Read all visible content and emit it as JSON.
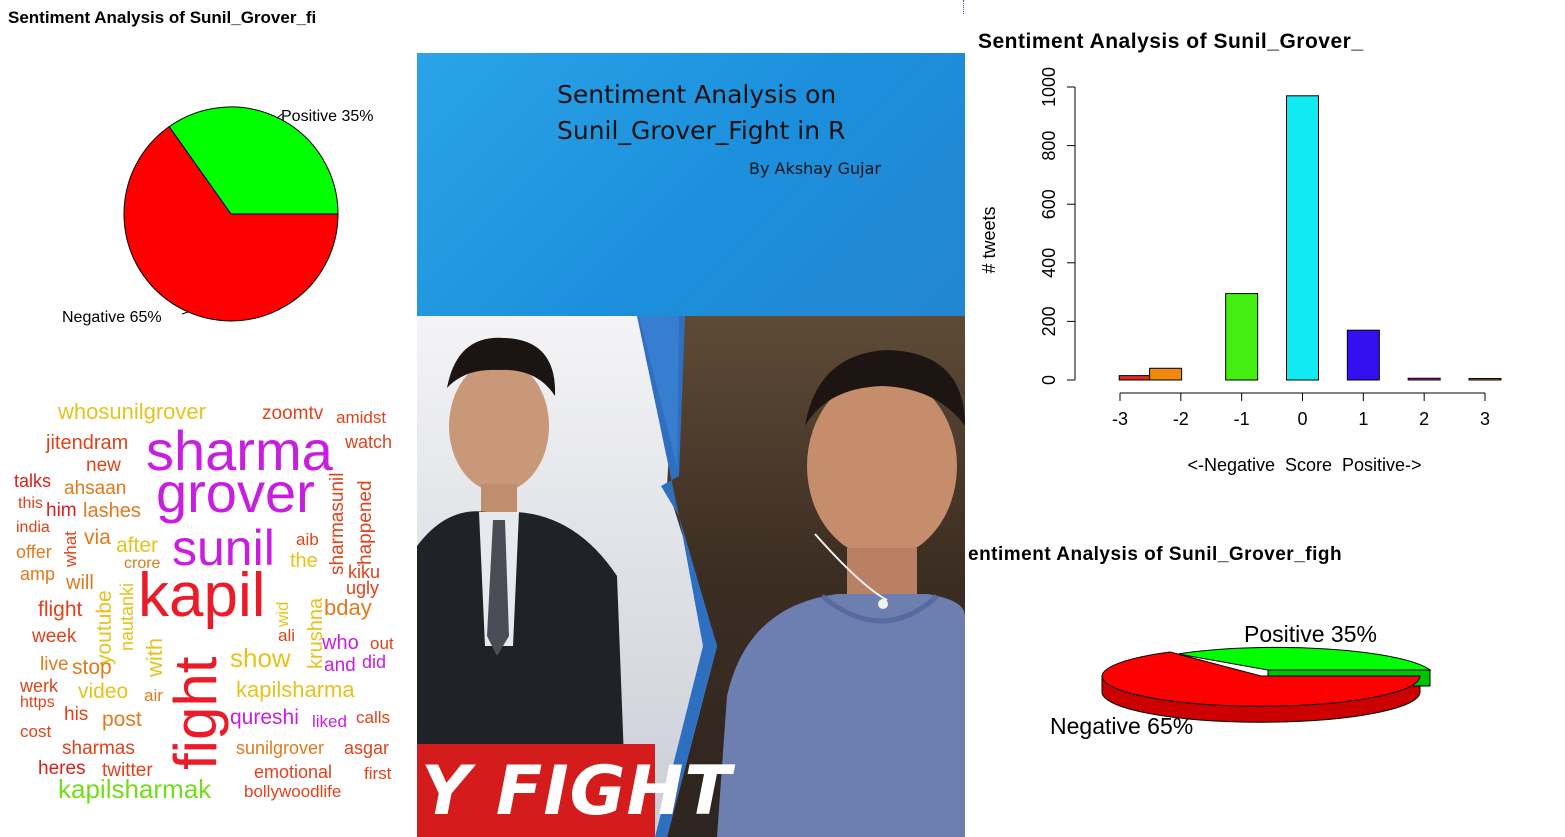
{
  "pie_top_left": {
    "title": "Sentiment Analysis of Sunil_Grover_fi",
    "positive_label": "Positive 35%",
    "negative_label": "Negative 65%",
    "positive_color": "#00ff00",
    "negative_color": "#ff0000"
  },
  "banner": {
    "title_line1": "Sentiment Analysis on",
    "title_line2": "Sunil_Grover_Fight in R",
    "author": "By Akshay Gujar"
  },
  "photo": {
    "caption": "Y FIGHT",
    "description_icons": [
      "person-left-photo",
      "person-right-photo"
    ]
  },
  "wordcloud": {
    "words": [
      {
        "text": "whosunilgrover",
        "color": "#e8c21c"
      },
      {
        "text": "zoomtv",
        "color": "#e0421c"
      },
      {
        "text": "amidst",
        "color": "#e0421c"
      },
      {
        "text": "jitendram",
        "color": "#e0421c"
      },
      {
        "text": "sharma",
        "color": "#c81ee0"
      },
      {
        "text": "watch",
        "color": "#e0421c"
      },
      {
        "text": "new",
        "color": "#e0421c"
      },
      {
        "text": "talks",
        "color": "#d8201c"
      },
      {
        "text": "ahsaan",
        "color": "#e07a1c"
      },
      {
        "text": "grover",
        "color": "#c81ee0"
      },
      {
        "text": "this",
        "color": "#e0421c"
      },
      {
        "text": "him",
        "color": "#d8201c"
      },
      {
        "text": "lashes",
        "color": "#e07a1c"
      },
      {
        "text": "happened",
        "color": "#e0421c"
      },
      {
        "text": "sharmasunil",
        "color": "#e0421c"
      },
      {
        "text": "india",
        "color": "#e0421c"
      },
      {
        "text": "what",
        "color": "#e0421c"
      },
      {
        "text": "via",
        "color": "#e07a1c"
      },
      {
        "text": "after",
        "color": "#e8c21c"
      },
      {
        "text": "sunil",
        "color": "#c81ee0"
      },
      {
        "text": "aib",
        "color": "#e0421c"
      },
      {
        "text": "offer",
        "color": "#e07a1c"
      },
      {
        "text": "crore",
        "color": "#e07a1c"
      },
      {
        "text": "the",
        "color": "#e8c21c"
      },
      {
        "text": "amp",
        "color": "#e07a1c"
      },
      {
        "text": "will",
        "color": "#e07a1c"
      },
      {
        "text": "kiku",
        "color": "#e0421c"
      },
      {
        "text": "ugly",
        "color": "#e0421c"
      },
      {
        "text": "kapil",
        "color": "#ea1c2a"
      },
      {
        "text": "bday",
        "color": "#e07a1c"
      },
      {
        "text": "flight",
        "color": "#e0421c"
      },
      {
        "text": "youtube",
        "color": "#e8c21c"
      },
      {
        "text": "nautanki",
        "color": "#e8c21c"
      },
      {
        "text": "krushna",
        "color": "#e8c21c"
      },
      {
        "text": "wid",
        "color": "#e8c21c"
      },
      {
        "text": "week",
        "color": "#e0421c"
      },
      {
        "text": "ali",
        "color": "#e0421c"
      },
      {
        "text": "who",
        "color": "#c81ee0"
      },
      {
        "text": "out",
        "color": "#e0421c"
      },
      {
        "text": "live",
        "color": "#e07a1c"
      },
      {
        "text": "stop",
        "color": "#e07a1c"
      },
      {
        "text": "with",
        "color": "#e8c21c"
      },
      {
        "text": "show",
        "color": "#e8c21c"
      },
      {
        "text": "fight",
        "color": "#ea1c2a"
      },
      {
        "text": "and",
        "color": "#c81ee0"
      },
      {
        "text": "did",
        "color": "#c81ee0"
      },
      {
        "text": "werk",
        "color": "#e0421c"
      },
      {
        "text": "video",
        "color": "#e8c21c"
      },
      {
        "text": "air",
        "color": "#e07a1c"
      },
      {
        "text": "kapilsharma",
        "color": "#e8c21c"
      },
      {
        "text": "https",
        "color": "#e0421c"
      },
      {
        "text": "his",
        "color": "#e0421c"
      },
      {
        "text": "post",
        "color": "#e07a1c"
      },
      {
        "text": "qureshi",
        "color": "#c81ee0"
      },
      {
        "text": "liked",
        "color": "#c81ee0"
      },
      {
        "text": "calls",
        "color": "#e0421c"
      },
      {
        "text": "cost",
        "color": "#e0421c"
      },
      {
        "text": "sharmas",
        "color": "#e0421c"
      },
      {
        "text": "sunilgrover",
        "color": "#e07a1c"
      },
      {
        "text": "asgar",
        "color": "#e0421c"
      },
      {
        "text": "heres",
        "color": "#d8201c"
      },
      {
        "text": "twitter",
        "color": "#e0421c"
      },
      {
        "text": "emotional",
        "color": "#e0421c"
      },
      {
        "text": "first",
        "color": "#e0421c"
      },
      {
        "text": "kapilsharmak",
        "color": "#74dc1c"
      },
      {
        "text": "bollywoodlife",
        "color": "#e0421c"
      }
    ]
  },
  "chart_data": [
    {
      "type": "pie",
      "title": "Sentiment Analysis of Sunil_Grover_fi",
      "slices": [
        {
          "label": "Positive 35%",
          "value": 35,
          "color": "#00ff00"
        },
        {
          "label": "Negative 65%",
          "value": 65,
          "color": "#ff0000"
        }
      ]
    },
    {
      "type": "bar",
      "title": "Sentiment Analysis of Sunil_Grover_",
      "xlabel": "<-Negative  Score  Positive->",
      "ylabel": "# tweets",
      "x_ticks": [
        "-3",
        "-2",
        "-1",
        "0",
        "1",
        "2",
        "3"
      ],
      "y_ticks": [
        "0",
        "200",
        "400",
        "600",
        "800",
        "1000"
      ],
      "ylim": [
        0,
        1000
      ],
      "xlim": [
        -3,
        3
      ],
      "bars": [
        {
          "x": -2.75,
          "value": 15,
          "color": "#e02a1c"
        },
        {
          "x": -2.25,
          "value": 40,
          "color": "#f08a0c"
        },
        {
          "x": -1.0,
          "value": 295,
          "color": "#44ee10"
        },
        {
          "x": 0.0,
          "value": 970,
          "color": "#10eaf0"
        },
        {
          "x": 1.0,
          "value": 170,
          "color": "#3410f0"
        },
        {
          "x": 2.0,
          "value": 6,
          "color": "#d81ad8"
        },
        {
          "x": 3.0,
          "value": 5,
          "color": "#f07a10"
        }
      ]
    },
    {
      "type": "pie",
      "title": "entiment Analysis of Sunil_Grover_figh",
      "style": "3d",
      "slices": [
        {
          "label": "Positive 35%",
          "value": 35,
          "color": "#00ff00"
        },
        {
          "label": "Negative 65%",
          "value": 65,
          "color": "#ff0000"
        }
      ]
    }
  ]
}
